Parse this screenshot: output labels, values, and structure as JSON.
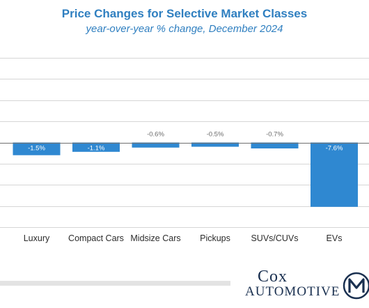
{
  "chart_data": {
    "type": "bar",
    "title": "Price Changes for Selective Market Classes",
    "subtitle": "year-over-year % change, December 2024",
    "categories": [
      "Luxury",
      "Compact Cars",
      "Midsize Cars",
      "Pickups",
      "SUVs/CUVs",
      "EVs"
    ],
    "values": [
      -1.5,
      -1.1,
      -0.6,
      -0.5,
      -0.7,
      -7.6
    ],
    "data_labels": [
      "-1.5%",
      "-1.1%",
      "-0.6%",
      "-0.5%",
      "-0.7%",
      "-7.6%"
    ],
    "ylim": [
      -10,
      10
    ],
    "grid": true,
    "bar_color": "#2f88d1"
  },
  "branding": {
    "logo_line1": "Cox",
    "logo_line2": "Automotive",
    "logo_icon": "m-circle-logo-icon"
  }
}
